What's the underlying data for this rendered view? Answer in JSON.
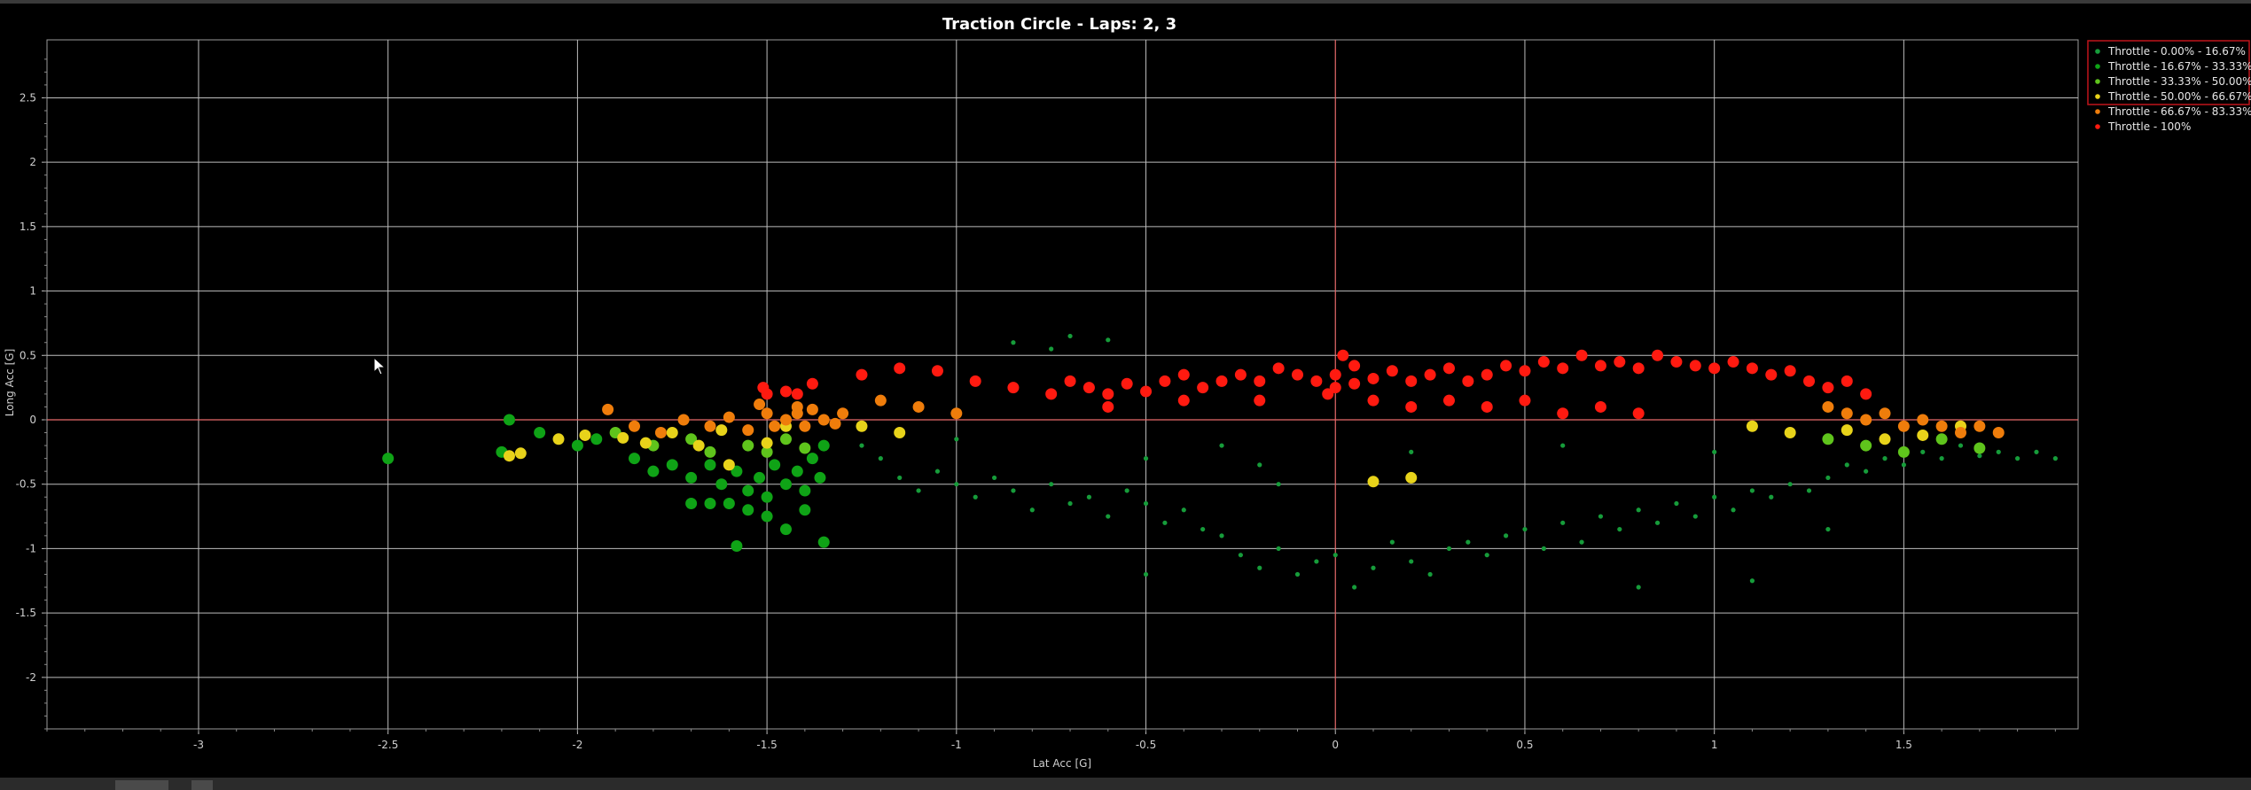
{
  "chart_data": {
    "type": "scatter",
    "title": "Traction Circle - Laps: 2, 3",
    "xlabel": "Lat Acc [G]",
    "ylabel": "Long Acc [G]",
    "xlim": [
      -3.4,
      1.96
    ],
    "ylim": [
      -2.4,
      2.95
    ],
    "xticks": [
      -3,
      -2.5,
      -2,
      -1.5,
      -1,
      -0.5,
      0,
      0.5,
      1,
      1.5
    ],
    "yticks": [
      -2,
      -1.5,
      -1,
      -0.5,
      0,
      0.5,
      1,
      1.5,
      2,
      2.5
    ],
    "grid": true,
    "legend_position": "top-right",
    "series": [
      {
        "name": "Throttle - 0.00% - 16.67%",
        "color": "#169c3a",
        "marker_size": "small",
        "points": [
          [
            -1.25,
            -0.2
          ],
          [
            -1.2,
            -0.3
          ],
          [
            -1.15,
            -0.45
          ],
          [
            -1.1,
            -0.55
          ],
          [
            -1.05,
            -0.4
          ],
          [
            -1.0,
            -0.5
          ],
          [
            -0.95,
            -0.6
          ],
          [
            -0.9,
            -0.45
          ],
          [
            -0.85,
            -0.55
          ],
          [
            -0.8,
            -0.7
          ],
          [
            -0.75,
            -0.5
          ],
          [
            -0.7,
            -0.65
          ],
          [
            -0.65,
            -0.6
          ],
          [
            -0.6,
            -0.75
          ],
          [
            -0.55,
            -0.55
          ],
          [
            -0.5,
            -0.65
          ],
          [
            -0.45,
            -0.8
          ],
          [
            -0.4,
            -0.7
          ],
          [
            -0.35,
            -0.85
          ],
          [
            -0.3,
            -0.9
          ],
          [
            -0.25,
            -1.05
          ],
          [
            -0.2,
            -1.15
          ],
          [
            -0.15,
            -1.0
          ],
          [
            -0.1,
            -1.2
          ],
          [
            -0.05,
            -1.1
          ],
          [
            0.0,
            -1.05
          ],
          [
            0.05,
            -1.3
          ],
          [
            0.1,
            -1.15
          ],
          [
            0.15,
            -0.95
          ],
          [
            0.2,
            -1.1
          ],
          [
            0.25,
            -1.2
          ],
          [
            0.3,
            -1.0
          ],
          [
            0.35,
            -0.95
          ],
          [
            0.4,
            -1.05
          ],
          [
            0.45,
            -0.9
          ],
          [
            0.5,
            -0.85
          ],
          [
            0.55,
            -1.0
          ],
          [
            0.6,
            -0.8
          ],
          [
            0.65,
            -0.95
          ],
          [
            0.7,
            -0.75
          ],
          [
            0.75,
            -0.85
          ],
          [
            0.8,
            -0.7
          ],
          [
            0.85,
            -0.8
          ],
          [
            0.9,
            -0.65
          ],
          [
            0.95,
            -0.75
          ],
          [
            1.0,
            -0.6
          ],
          [
            1.05,
            -0.7
          ],
          [
            1.1,
            -0.55
          ],
          [
            1.15,
            -0.6
          ],
          [
            1.2,
            -0.5
          ],
          [
            1.25,
            -0.55
          ],
          [
            1.3,
            -0.45
          ],
          [
            1.35,
            -0.35
          ],
          [
            1.4,
            -0.4
          ],
          [
            1.45,
            -0.3
          ],
          [
            1.5,
            -0.35
          ],
          [
            1.55,
            -0.25
          ],
          [
            1.6,
            -0.3
          ],
          [
            1.65,
            -0.2
          ],
          [
            1.7,
            -0.28
          ],
          [
            1.75,
            -0.25
          ],
          [
            1.8,
            -0.3
          ],
          [
            1.85,
            -0.25
          ],
          [
            1.9,
            -0.3
          ],
          [
            -0.75,
            0.55
          ],
          [
            -0.7,
            0.65
          ],
          [
            -0.85,
            0.6
          ],
          [
            -0.6,
            0.62
          ],
          [
            -0.3,
            -0.2
          ],
          [
            -0.5,
            -0.3
          ],
          [
            -0.2,
            -0.35
          ],
          [
            0.2,
            -0.25
          ],
          [
            0.6,
            -0.2
          ],
          [
            1.0,
            -0.25
          ],
          [
            1.1,
            -1.25
          ],
          [
            0.8,
            -1.3
          ],
          [
            -0.5,
            -1.2
          ],
          [
            1.3,
            -0.85
          ],
          [
            -1.0,
            -0.15
          ],
          [
            -0.15,
            -0.5
          ]
        ]
      },
      {
        "name": "Throttle - 16.67% - 33.33%",
        "color": "#0fa316",
        "marker_size": "large",
        "points": [
          [
            -2.5,
            -0.3
          ],
          [
            -2.18,
            0.0
          ],
          [
            -2.2,
            -0.25
          ],
          [
            -2.1,
            -0.1
          ],
          [
            -2.0,
            -0.2
          ],
          [
            -1.95,
            -0.15
          ],
          [
            -1.85,
            -0.3
          ],
          [
            -1.8,
            -0.4
          ],
          [
            -1.75,
            -0.35
          ],
          [
            -1.7,
            -0.45
          ],
          [
            -1.65,
            -0.35
          ],
          [
            -1.62,
            -0.5
          ],
          [
            -1.6,
            -0.65
          ],
          [
            -1.58,
            -0.4
          ],
          [
            -1.55,
            -0.55
          ],
          [
            -1.52,
            -0.45
          ],
          [
            -1.5,
            -0.6
          ],
          [
            -1.48,
            -0.35
          ],
          [
            -1.45,
            -0.5
          ],
          [
            -1.42,
            -0.4
          ],
          [
            -1.4,
            -0.55
          ],
          [
            -1.38,
            -0.3
          ],
          [
            -1.36,
            -0.45
          ],
          [
            -1.35,
            -0.2
          ],
          [
            -1.58,
            -0.98
          ],
          [
            -1.5,
            -0.75
          ],
          [
            -1.45,
            -0.85
          ],
          [
            -1.35,
            -0.95
          ],
          [
            -1.4,
            -0.7
          ],
          [
            -1.55,
            -0.7
          ],
          [
            -1.65,
            -0.65
          ],
          [
            -1.7,
            -0.65
          ]
        ]
      },
      {
        "name": "Throttle - 33.33% - 50.00%",
        "color": "#5fc41c",
        "marker_size": "large",
        "points": [
          [
            -1.9,
            -0.1
          ],
          [
            -1.8,
            -0.2
          ],
          [
            -1.7,
            -0.15
          ],
          [
            -1.65,
            -0.25
          ],
          [
            -1.55,
            -0.2
          ],
          [
            -1.5,
            -0.25
          ],
          [
            -1.45,
            -0.15
          ],
          [
            -1.4,
            -0.22
          ],
          [
            1.4,
            -0.2
          ],
          [
            1.5,
            -0.25
          ],
          [
            1.6,
            -0.15
          ],
          [
            1.7,
            -0.22
          ],
          [
            1.3,
            -0.15
          ]
        ]
      },
      {
        "name": "Throttle - 50.00% - 66.67%",
        "color": "#e8d31a",
        "marker_size": "large",
        "points": [
          [
            -2.18,
            -0.28
          ],
          [
            -2.15,
            -0.26
          ],
          [
            -2.05,
            -0.15
          ],
          [
            -1.98,
            -0.12
          ],
          [
            -1.88,
            -0.14
          ],
          [
            -1.82,
            -0.18
          ],
          [
            -1.75,
            -0.1
          ],
          [
            -1.68,
            -0.2
          ],
          [
            -1.62,
            -0.08
          ],
          [
            -1.6,
            -0.35
          ],
          [
            -1.5,
            -0.18
          ],
          [
            -1.45,
            -0.05
          ],
          [
            0.1,
            -0.48
          ],
          [
            0.2,
            -0.45
          ],
          [
            1.1,
            -0.05
          ],
          [
            1.2,
            -0.1
          ],
          [
            1.35,
            -0.08
          ],
          [
            1.45,
            -0.15
          ],
          [
            1.55,
            -0.12
          ],
          [
            1.65,
            -0.05
          ],
          [
            -1.15,
            -0.1
          ],
          [
            -1.25,
            -0.05
          ]
        ]
      },
      {
        "name": "Throttle - 66.67% - 83.33%",
        "color": "#ef7d0b",
        "marker_size": "large",
        "points": [
          [
            -1.92,
            0.08
          ],
          [
            -1.85,
            -0.05
          ],
          [
            -1.78,
            -0.1
          ],
          [
            -1.72,
            0.0
          ],
          [
            -1.65,
            -0.05
          ],
          [
            -1.6,
            0.02
          ],
          [
            -1.55,
            -0.08
          ],
          [
            -1.5,
            0.05
          ],
          [
            -1.48,
            -0.05
          ],
          [
            -1.45,
            0.0
          ],
          [
            -1.42,
            0.05
          ],
          [
            -1.4,
            -0.05
          ],
          [
            -1.38,
            0.08
          ],
          [
            -1.35,
            0.0
          ],
          [
            -1.32,
            -0.03
          ],
          [
            -1.3,
            0.05
          ],
          [
            -1.52,
            0.12
          ],
          [
            -1.42,
            0.1
          ],
          [
            1.3,
            0.1
          ],
          [
            1.35,
            0.05
          ],
          [
            1.4,
            0.0
          ],
          [
            1.45,
            0.05
          ],
          [
            1.5,
            -0.05
          ],
          [
            1.55,
            0.0
          ],
          [
            1.6,
            -0.05
          ],
          [
            1.65,
            -0.1
          ],
          [
            1.7,
            -0.05
          ],
          [
            1.75,
            -0.1
          ],
          [
            -1.2,
            0.15
          ],
          [
            -1.1,
            0.1
          ],
          [
            -1.0,
            0.05
          ]
        ]
      },
      {
        "name": "Throttle - 100%",
        "color": "#ff1a10",
        "marker_size": "large",
        "points": [
          [
            -1.51,
            0.25
          ],
          [
            -1.45,
            0.22
          ],
          [
            -1.38,
            0.28
          ],
          [
            -1.5,
            0.2
          ],
          [
            -1.42,
            0.2
          ],
          [
            -1.25,
            0.35
          ],
          [
            -1.15,
            0.4
          ],
          [
            -1.05,
            0.38
          ],
          [
            -0.95,
            0.3
          ],
          [
            -0.85,
            0.25
          ],
          [
            -0.75,
            0.2
          ],
          [
            -0.7,
            0.3
          ],
          [
            -0.65,
            0.25
          ],
          [
            -0.6,
            0.2
          ],
          [
            -0.55,
            0.28
          ],
          [
            -0.5,
            0.22
          ],
          [
            -0.45,
            0.3
          ],
          [
            -0.4,
            0.35
          ],
          [
            -0.35,
            0.25
          ],
          [
            -0.3,
            0.3
          ],
          [
            -0.25,
            0.35
          ],
          [
            -0.2,
            0.3
          ],
          [
            -0.15,
            0.4
          ],
          [
            -0.1,
            0.35
          ],
          [
            -0.05,
            0.3
          ],
          [
            0.0,
            0.35
          ],
          [
            0.02,
            0.5
          ],
          [
            -0.02,
            0.2
          ],
          [
            0.05,
            0.28
          ],
          [
            0.1,
            0.32
          ],
          [
            0.15,
            0.38
          ],
          [
            0.2,
            0.3
          ],
          [
            0.25,
            0.35
          ],
          [
            0.3,
            0.4
          ],
          [
            0.35,
            0.3
          ],
          [
            0.4,
            0.35
          ],
          [
            0.45,
            0.42
          ],
          [
            0.5,
            0.38
          ],
          [
            0.55,
            0.45
          ],
          [
            0.6,
            0.4
          ],
          [
            0.65,
            0.5
          ],
          [
            0.7,
            0.42
          ],
          [
            0.75,
            0.45
          ],
          [
            0.8,
            0.4
          ],
          [
            0.85,
            0.5
          ],
          [
            0.9,
            0.45
          ],
          [
            0.95,
            0.42
          ],
          [
            1.0,
            0.4
          ],
          [
            1.05,
            0.45
          ],
          [
            1.1,
            0.4
          ],
          [
            1.15,
            0.35
          ],
          [
            1.2,
            0.38
          ],
          [
            1.25,
            0.3
          ],
          [
            1.3,
            0.25
          ],
          [
            1.35,
            0.3
          ],
          [
            1.4,
            0.2
          ],
          [
            0.2,
            0.1
          ],
          [
            0.4,
            0.1
          ],
          [
            0.6,
            0.05
          ],
          [
            0.8,
            0.05
          ],
          [
            -0.2,
            0.15
          ],
          [
            0.1,
            0.15
          ],
          [
            0.3,
            0.15
          ],
          [
            0.5,
            0.15
          ],
          [
            0.7,
            0.1
          ],
          [
            -0.4,
            0.15
          ],
          [
            -0.6,
            0.1
          ],
          [
            0.0,
            0.25
          ],
          [
            0.05,
            0.42
          ]
        ]
      }
    ]
  }
}
